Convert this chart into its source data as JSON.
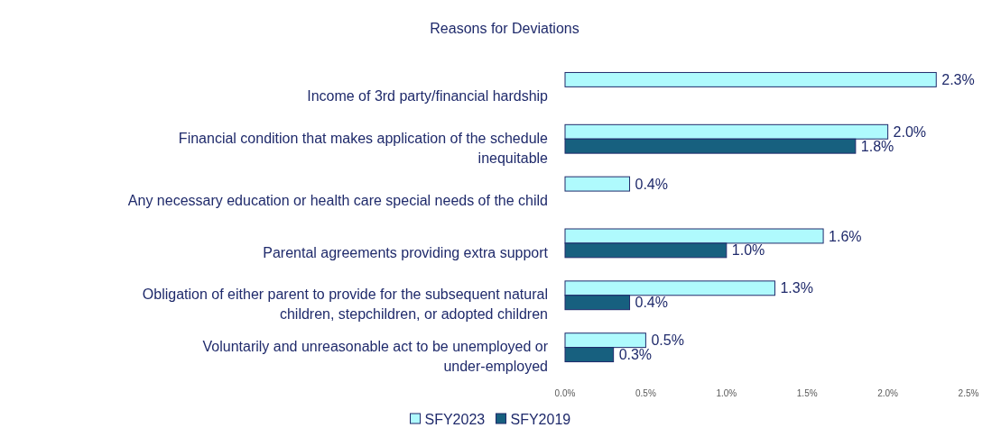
{
  "chart_data": {
    "type": "bar",
    "orientation": "horizontal",
    "title": "Reasons for Deviations",
    "categories": [
      "Income of 3rd party/financial hardship",
      "Financial condition that makes application of the schedule inequitable",
      "Any necessary education or health care special needs of the child",
      "Parental agreements providing extra support",
      "Obligation of either parent to provide for the subsequent natural children, stepchildren, or adopted children",
      "Voluntarily and unreasonable act to be unemployed or under-employed"
    ],
    "series": [
      {
        "name": "SFY2023",
        "color": "#affafd",
        "values": [
          2.3,
          2.0,
          0.4,
          1.6,
          1.3,
          0.5
        ],
        "value_labels": [
          "2.3%",
          "2.0%",
          "0.4%",
          "1.6%",
          "1.3%",
          "0.5%"
        ]
      },
      {
        "name": "SFY2019",
        "color": "#17607f",
        "values": [
          null,
          1.8,
          null,
          1.0,
          0.4,
          0.3
        ],
        "value_labels": [
          null,
          "1.8%",
          null,
          "1.0%",
          "0.4%",
          "0.3%"
        ]
      }
    ],
    "xlim": [
      0,
      2.5
    ],
    "xticks": [
      {
        "value": 0,
        "label": "0.0%"
      },
      {
        "value": 0.5,
        "label": "0.5%"
      },
      {
        "value": 1,
        "label": "1.0%"
      },
      {
        "value": 1.5,
        "label": "1.5%"
      },
      {
        "value": 2,
        "label": "2.0%"
      },
      {
        "value": 2.5,
        "label": "2.5%"
      }
    ],
    "legend": "bottom",
    "grid": false
  }
}
